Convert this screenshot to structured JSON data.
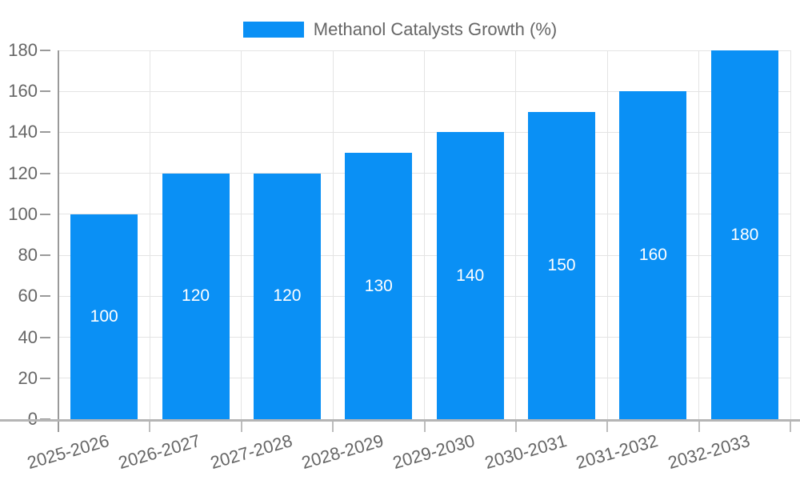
{
  "legend": {
    "label": "Methanol Catalysts Growth (%)",
    "swatch_color": "#0a90f5"
  },
  "colors": {
    "bar": "#0a90f5",
    "bar_label": "#ffffff",
    "axis_label": "#666666",
    "grid": "#e4e4e4",
    "y_axis_line": "#9a9a9a",
    "x_axis_line": "#b5b5b5"
  },
  "chart_data": {
    "type": "bar",
    "title": "",
    "xlabel": "",
    "ylabel": "",
    "categories": [
      "2025-2026",
      "2026-2027",
      "2027-2028",
      "2028-2029",
      "2029-2030",
      "2030-2031",
      "2031-2032",
      "2032-2033"
    ],
    "series": [
      {
        "name": "Methanol Catalysts Growth (%)",
        "values": [
          100,
          120,
          120,
          130,
          140,
          150,
          160,
          180
        ]
      }
    ],
    "value_labels": [
      "100",
      "120",
      "120",
      "130",
      "140",
      "150",
      "160",
      "180"
    ],
    "ylim": [
      0,
      180
    ],
    "ytick_interval": 20,
    "yticks": [
      "0",
      "20",
      "40",
      "60",
      "80",
      "100",
      "120",
      "140",
      "160",
      "180"
    ],
    "grid": true,
    "legend_position": "top-center"
  }
}
